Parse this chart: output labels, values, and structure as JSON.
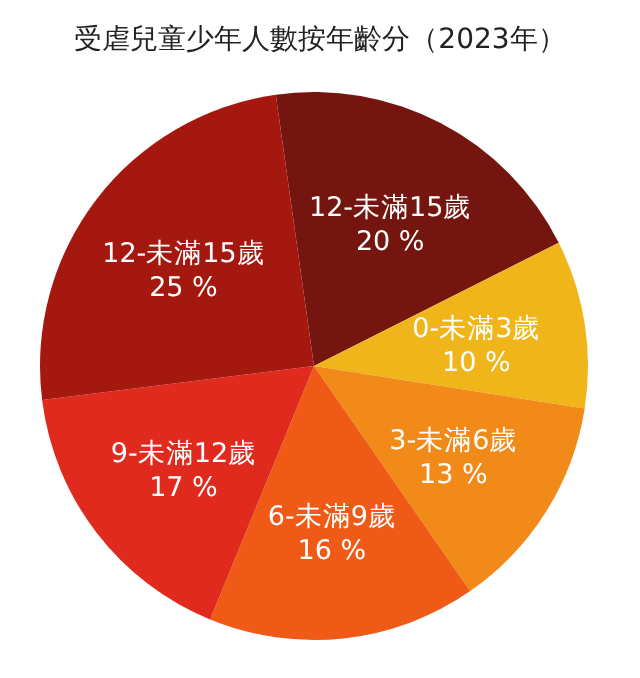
{
  "chart_data": {
    "type": "pie",
    "title": "受虐兒童少年人數按年齡分（2023年）",
    "categories": [
      "12-未滿15歲",
      "0-未滿3歲",
      "3-未滿6歲",
      "6-未滿9歲",
      "9-未滿12歲",
      "12-未滿15歲"
    ],
    "values": [
      20,
      10,
      13,
      16,
      17,
      25
    ],
    "colors": [
      "#751510",
      "#f0b51a",
      "#f28a1a",
      "#ef5a17",
      "#e02a1e",
      "#a5180f"
    ],
    "value_labels": [
      "20 %",
      "10 %",
      "13 %",
      "16 %",
      "17 %",
      "25 %"
    ]
  }
}
